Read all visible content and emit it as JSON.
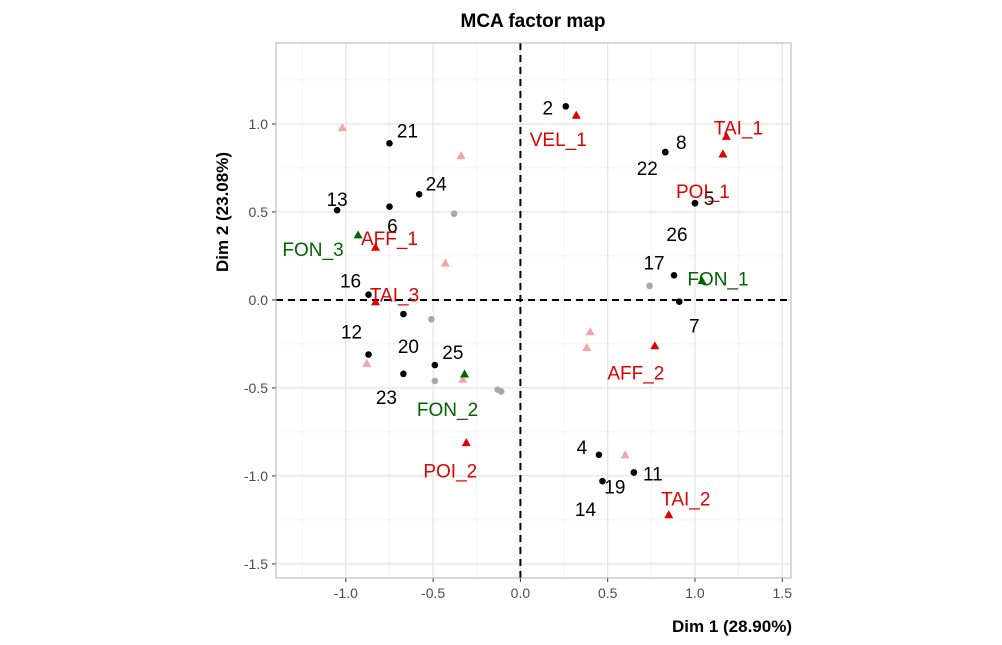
{
  "chart_data": {
    "type": "scatter",
    "title": "MCA factor map",
    "xlabel": "Dim 1 (28.90%)",
    "ylabel": "Dim 2 (23.08%)",
    "xlim": [
      -1.4,
      1.55
    ],
    "ylim": [
      -1.58,
      1.46
    ],
    "xticks": [
      -1.0,
      -0.5,
      0.0,
      0.5,
      1.0,
      1.5
    ],
    "xtick_labels": [
      "-1.0",
      "-0.5",
      "0.0",
      "0.5",
      "1.0",
      "1.5"
    ],
    "yticks": [
      -1.5,
      -1.0,
      -0.5,
      0.0,
      0.5,
      1.0
    ],
    "ytick_labels": [
      "-1.5",
      "-1.0",
      "-0.5",
      "0.0",
      "0.5",
      "1.0"
    ],
    "grid": true,
    "reference_lines": {
      "x": 0,
      "y": 0,
      "style": "dashed"
    },
    "colors": {
      "individual": "#000000",
      "active_category": "#e00000",
      "supplementary_category": "#006400",
      "faded_category": "#f4a6a6",
      "faded_individual": "#a8a8a8",
      "label_red": "#e00000",
      "label_green": "#006400"
    },
    "individuals": [
      {
        "label": "2",
        "x": 0.26,
        "y": 1.1
      },
      {
        "label": "8",
        "x": 0.83,
        "y": 0.84
      },
      {
        "label": "22",
        "x": 0.83,
        "y": 0.84
      },
      {
        "label": "5",
        "x": 1.0,
        "y": 0.55
      },
      {
        "label": "26",
        "x": 1.0,
        "y": 0.55
      },
      {
        "label": "17",
        "x": 0.88,
        "y": 0.14
      },
      {
        "label": "7",
        "x": 0.91,
        "y": -0.01
      },
      {
        "label": "21",
        "x": -0.75,
        "y": 0.89
      },
      {
        "label": "24",
        "x": -0.58,
        "y": 0.6
      },
      {
        "label": "13",
        "x": -1.05,
        "y": 0.51
      },
      {
        "label": "6",
        "x": -0.75,
        "y": 0.53
      },
      {
        "label": "16",
        "x": -0.87,
        "y": 0.03
      },
      {
        "label": "20",
        "x": -0.67,
        "y": -0.08
      },
      {
        "label": "12",
        "x": -0.87,
        "y": -0.31
      },
      {
        "label": "25",
        "x": -0.49,
        "y": -0.37
      },
      {
        "label": "23",
        "x": -0.67,
        "y": -0.42
      },
      {
        "label": "4",
        "x": 0.45,
        "y": -0.88
      },
      {
        "label": "11",
        "x": 0.65,
        "y": -0.98
      },
      {
        "label": "19",
        "x": 0.65,
        "y": -0.98
      },
      {
        "label": "14",
        "x": 0.47,
        "y": -1.03
      }
    ],
    "active_categories": [
      {
        "label": "VEL_1",
        "x": 0.32,
        "y": 1.05
      },
      {
        "label": "TAI_1",
        "x": 1.18,
        "y": 0.93
      },
      {
        "label": "POI_1",
        "x": 1.16,
        "y": 0.83
      },
      {
        "label": "AFF_1",
        "x": -0.83,
        "y": 0.3
      },
      {
        "label": "TAI_3",
        "x": -0.83,
        "y": -0.01
      },
      {
        "label": "AFF_2",
        "x": 0.77,
        "y": -0.26
      },
      {
        "label": "POI_2",
        "x": -0.31,
        "y": -0.81
      },
      {
        "label": "TAI_2",
        "x": 0.85,
        "y": -1.22
      }
    ],
    "supplementary_categories": [
      {
        "label": "FON_1",
        "x": 1.04,
        "y": 0.11
      },
      {
        "label": "FON_3",
        "x": -0.93,
        "y": 0.37
      },
      {
        "label": "FON_2",
        "x": -0.32,
        "y": -0.42
      }
    ],
    "faded_categories": [
      {
        "x": -1.02,
        "y": 0.98
      },
      {
        "x": -0.34,
        "y": 0.82
      },
      {
        "x": -0.43,
        "y": 0.21
      },
      {
        "x": -0.88,
        "y": -0.36
      },
      {
        "x": -0.33,
        "y": -0.45
      },
      {
        "x": 0.4,
        "y": -0.18
      },
      {
        "x": 0.38,
        "y": -0.27
      },
      {
        "x": 0.6,
        "y": -0.88
      }
    ],
    "faded_individuals": [
      {
        "x": -0.38,
        "y": 0.49
      },
      {
        "x": -0.51,
        "y": -0.11
      },
      {
        "x": -0.49,
        "y": -0.46
      },
      {
        "x": -0.13,
        "y": -0.51
      },
      {
        "x": -0.11,
        "y": -0.52
      },
      {
        "x": 0.74,
        "y": 0.08
      }
    ]
  }
}
